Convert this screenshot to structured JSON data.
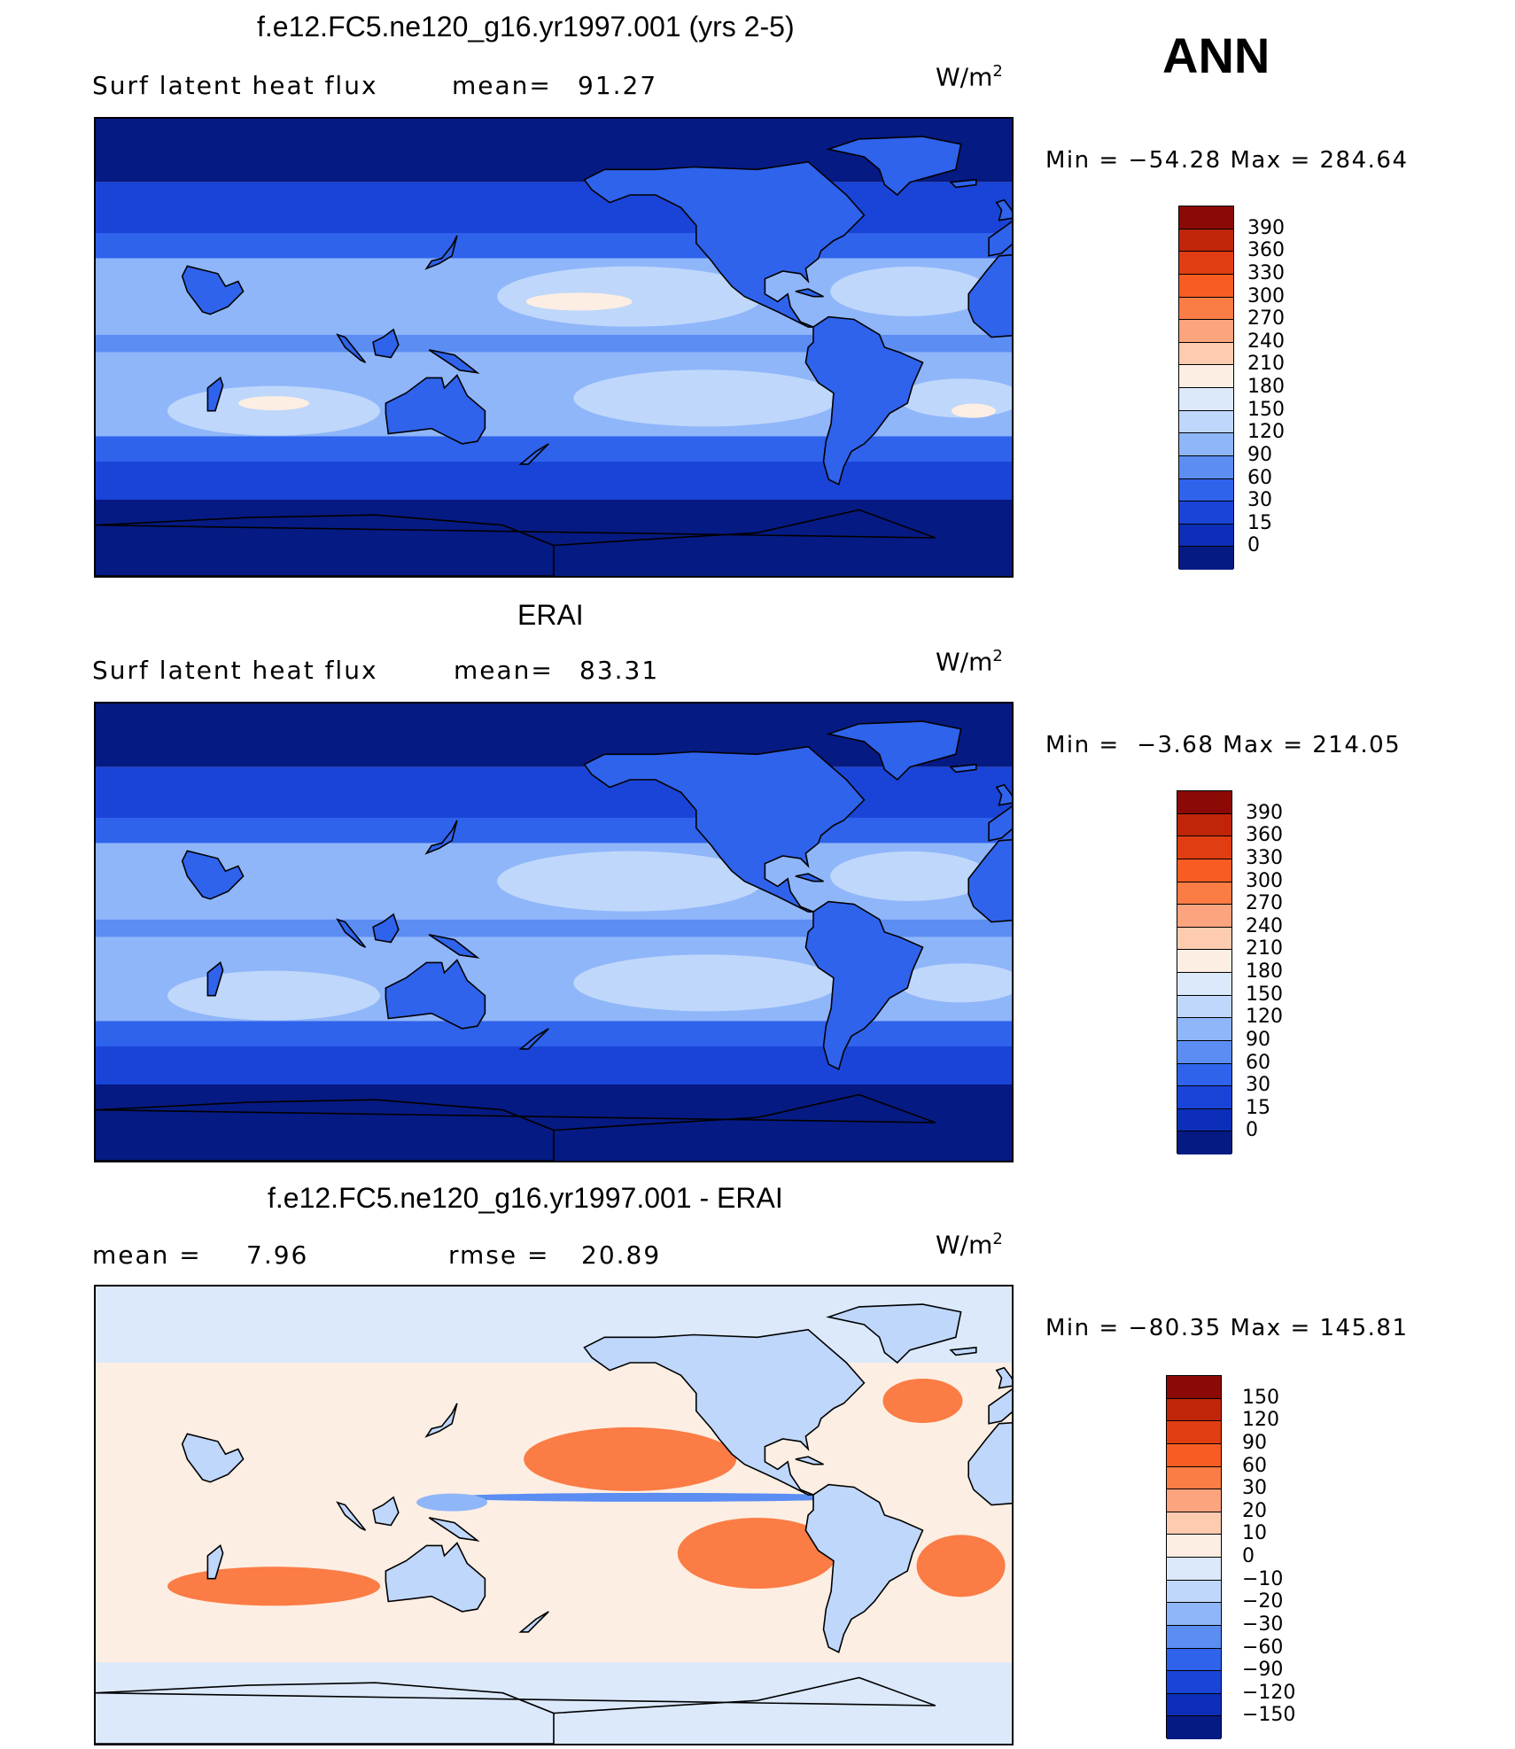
{
  "season": "ANN",
  "panels": [
    {
      "title": "f.e12.FC5.ne120_g16.yr1997.001 (yrs 2-5)",
      "variable": "Surf  latent  heat  flux",
      "stat1_label": "mean=",
      "stat1_value": "91.27",
      "unit_base": "W/m",
      "unit_exp": "2",
      "min_label": "Min  =",
      "min_value": "−54.28",
      "max_label": "Max  =",
      "max_value": "284.64",
      "colorbar": {
        "levels": [
          "390",
          "360",
          "330",
          "300",
          "270",
          "240",
          "210",
          "180",
          "150",
          "120",
          "90",
          "60",
          "30",
          "15",
          "0"
        ],
        "colors": [
          "#8b0a06",
          "#c0250a",
          "#e03e12",
          "#f85c22",
          "#fb7c45",
          "#fca47e",
          "#fdcbb0",
          "#fdeee3",
          "#dbe9fb",
          "#bfd7fb",
          "#8fb6f9",
          "#5b8df2",
          "#2f63ec",
          "#1a44d8",
          "#0c2eb8",
          "#061a83"
        ]
      }
    },
    {
      "title": "ERAI",
      "variable": "Surf  latent  heat  flux",
      "stat1_label": "mean=",
      "stat1_value": "83.31",
      "unit_base": "W/m",
      "unit_exp": "2",
      "min_label": "Min  =",
      "min_value": "−3.68",
      "max_label": "Max  =",
      "max_value": "214.05",
      "colorbar": {
        "levels": [
          "390",
          "360",
          "330",
          "300",
          "270",
          "240",
          "210",
          "180",
          "150",
          "120",
          "90",
          "60",
          "30",
          "15",
          "0"
        ],
        "colors": [
          "#8b0a06",
          "#c0250a",
          "#e03e12",
          "#f85c22",
          "#fb7c45",
          "#fca47e",
          "#fdcbb0",
          "#fdeee3",
          "#dbe9fb",
          "#bfd7fb",
          "#8fb6f9",
          "#5b8df2",
          "#2f63ec",
          "#1a44d8",
          "#0c2eb8",
          "#061a83"
        ]
      }
    },
    {
      "title": "f.e12.FC5.ne120_g16.yr1997.001 - ERAI",
      "stat1_label": "mean  =",
      "stat1_value": "7.96",
      "stat2_label": "rmse  =",
      "stat2_value": "20.89",
      "unit_base": "W/m",
      "unit_exp": "2",
      "min_label": "Min  =",
      "min_value": "−80.35",
      "max_label": "Max  =",
      "max_value": "145.81",
      "colorbar": {
        "levels": [
          "150",
          "120",
          "90",
          "60",
          "30",
          "20",
          "10",
          "0",
          "−10",
          "−20",
          "−30",
          "−60",
          "−90",
          "−120",
          "−150"
        ],
        "colors": [
          "#8b0a06",
          "#c0250a",
          "#e03e12",
          "#f85c22",
          "#fb7c45",
          "#fca47e",
          "#fdcbb0",
          "#fdeee3",
          "#dbe9fb",
          "#bfd7fb",
          "#8fb6f9",
          "#5b8df2",
          "#2f63ec",
          "#1a44d8",
          "#0c2eb8",
          "#061a83"
        ]
      }
    }
  ],
  "chart_data": [
    {
      "type": "heatmap",
      "title": "f.e12.FC5.ne120_g16.yr1997.001 (yrs 2-5)",
      "subtitle": "Surf latent heat flux",
      "mean": 91.27,
      "units": "W/m2",
      "min": -54.28,
      "max": 284.64,
      "contour_levels": [
        0,
        15,
        30,
        60,
        90,
        120,
        150,
        180,
        210,
        240,
        270,
        300,
        330,
        360,
        390
      ]
    },
    {
      "type": "heatmap",
      "title": "ERAI",
      "subtitle": "Surf latent heat flux",
      "mean": 83.31,
      "units": "W/m2",
      "min": -3.68,
      "max": 214.05,
      "contour_levels": [
        0,
        15,
        30,
        60,
        90,
        120,
        150,
        180,
        210,
        240,
        270,
        300,
        330,
        360,
        390
      ]
    },
    {
      "type": "heatmap",
      "title": "f.e12.FC5.ne120_g16.yr1997.001 - ERAI",
      "mean": 7.96,
      "rmse": 20.89,
      "units": "W/m2",
      "min": -80.35,
      "max": 145.81,
      "contour_levels": [
        -150,
        -120,
        -90,
        -60,
        -30,
        -20,
        -10,
        0,
        10,
        20,
        30,
        60,
        90,
        120,
        150
      ]
    }
  ]
}
